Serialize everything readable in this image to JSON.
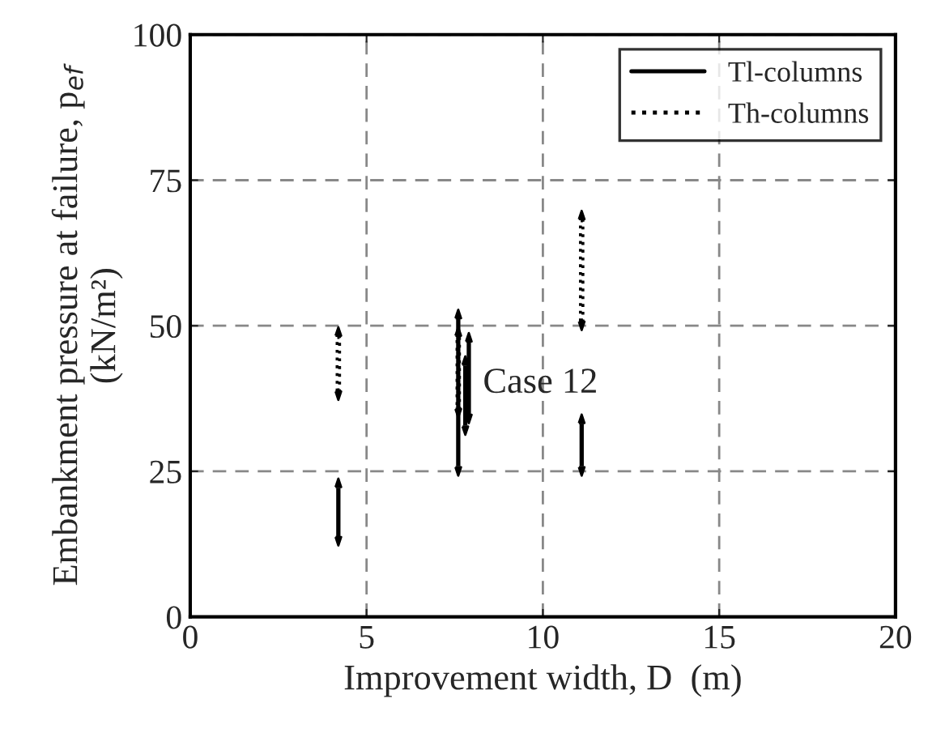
{
  "chart_data": {
    "type": "bar",
    "xlabel": "Improvement width, D  (m)",
    "ylabel": "Embankment pressure at failure, p$_{ef}$\n(kN/m²)",
    "series": [
      {
        "name": "Tl-columns",
        "color": "#000000",
        "line_style": "solid",
        "x": [
          4.2,
          7.6,
          7.8,
          7.9,
          11.1
        ],
        "base": [
          14,
          26,
          33,
          35,
          26
        ],
        "values": [
          8,
          25,
          10,
          12,
          7
        ]
      },
      {
        "name": "Th-columns",
        "color": "#000000",
        "line_style": "dotted",
        "x": [
          4.2,
          7.6,
          11.1
        ],
        "base": [
          39,
          36,
          51
        ],
        "values": [
          9,
          12,
          17
        ]
      }
    ],
    "annotations": [
      "Case 12"
    ],
    "xlim": [
      0,
      20
    ],
    "xticks": [
      0,
      5,
      10,
      15,
      20
    ],
    "ylim": [
      0,
      100
    ],
    "yticks": [
      0,
      25,
      50,
      75,
      100
    ],
    "grid": true,
    "legend": "top right"
  }
}
